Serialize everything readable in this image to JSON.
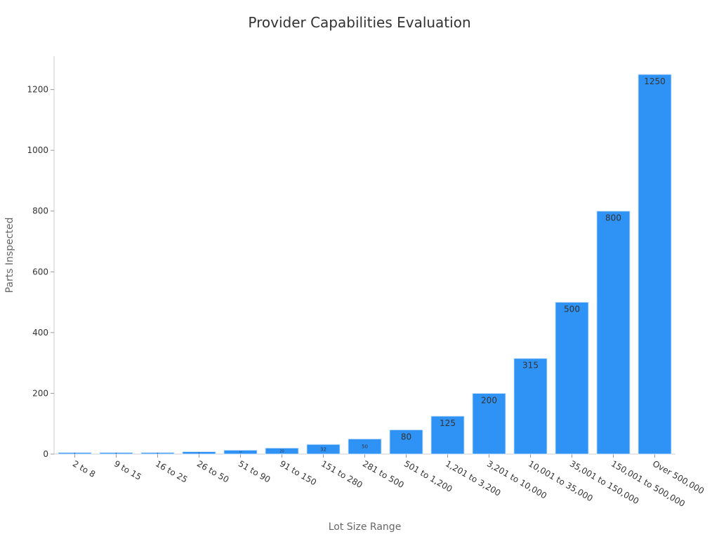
{
  "chart_data": {
    "type": "bar",
    "title": "Provider Capabilities Evaluation",
    "xlabel": "Lot Size Range",
    "ylabel": "Parts Inspected",
    "categories": [
      "2 to 8",
      "9 to 15",
      "16 to 25",
      "26 to 50",
      "51 to 90",
      "91 to 150",
      "151 to 280",
      "281 to 500",
      "501 to 1,200",
      "1,201 to 3,200",
      "3,201 to 10,000",
      "10,001 to 35,000",
      "35,001 to 150,000",
      "150,001 to 500,000",
      "Over 500,000"
    ],
    "values": [
      5,
      5,
      5,
      8,
      13,
      20,
      32,
      50,
      80,
      125,
      200,
      315,
      500,
      800,
      1250
    ],
    "ylim": [
      0,
      1310
    ],
    "yticks": [
      0,
      200,
      400,
      600,
      800,
      1000,
      1200
    ],
    "grid": false,
    "legend": "none",
    "bar_color": "#2f92f5"
  }
}
